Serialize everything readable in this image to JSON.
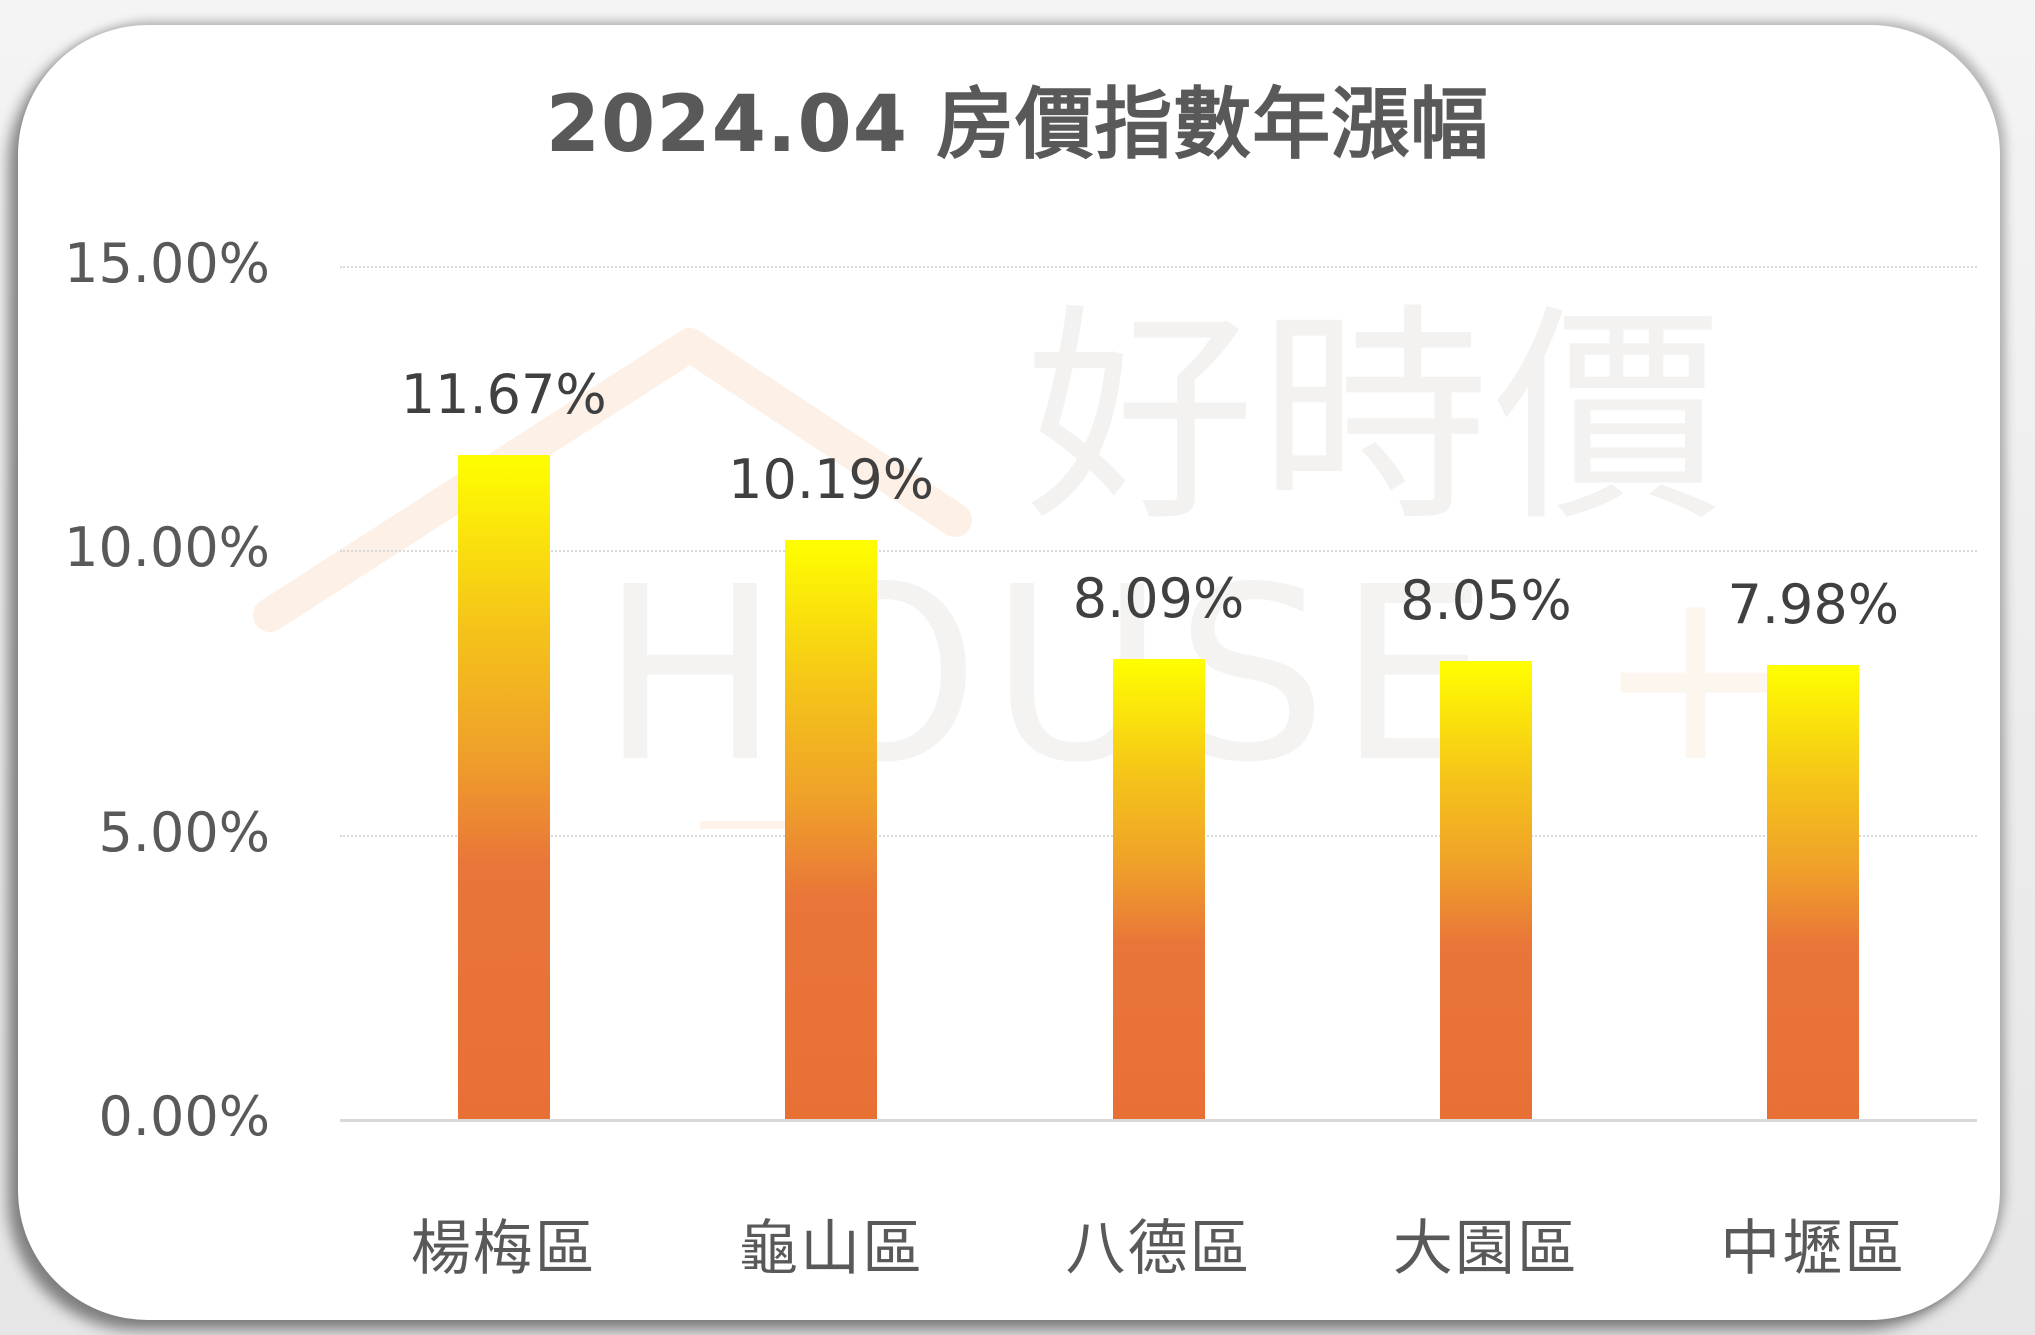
{
  "chart_data": {
    "type": "bar",
    "title": "2024.04 房價指數年漲幅",
    "categories": [
      "楊梅區",
      "龜山區",
      "八德區",
      "大園區",
      "中壢區"
    ],
    "values": [
      11.67,
      10.19,
      8.09,
      8.05,
      7.98
    ],
    "value_labels": [
      "11.67%",
      "10.19%",
      "8.09%",
      "8.05%",
      "7.98%"
    ],
    "xlabel": "",
    "ylabel": "",
    "ylim": [
      0,
      15
    ],
    "yticks": [
      "0.00%",
      "5.00%",
      "10.00%",
      "15.00%"
    ],
    "grid": true,
    "legend": null,
    "bar_gradient": [
      "#ffff00",
      "#e97035"
    ]
  },
  "title": "2024.04 房價指數年漲幅",
  "watermark": {
    "chinese": "好時價",
    "english": "HOUSE",
    "plus": "+"
  },
  "colors": {
    "bar_top": "#ffff00",
    "bar_bottom": "#e97035",
    "text": "#595959",
    "grid": "#d9d9d9"
  }
}
